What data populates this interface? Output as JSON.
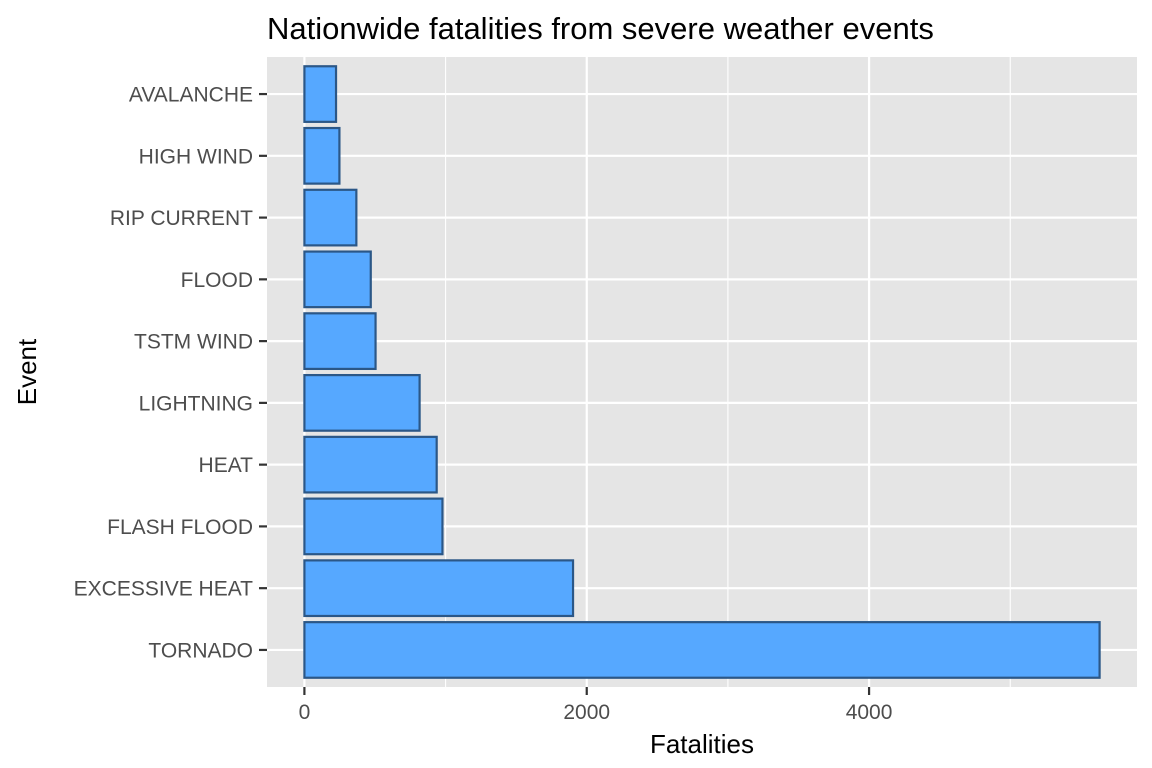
{
  "chart_data": {
    "type": "bar",
    "orientation": "horizontal",
    "title": "Nationwide fatalities from severe weather events",
    "xlabel": "Fatalities",
    "ylabel": "Event",
    "categories": [
      "TORNADO",
      "EXCESSIVE HEAT",
      "FLASH FLOOD",
      "HEAT",
      "LIGHTNING",
      "TSTM WIND",
      "FLOOD",
      "RIP CURRENT",
      "HIGH WIND",
      "AVALANCHE"
    ],
    "values": [
      5633,
      1903,
      978,
      937,
      816,
      504,
      470,
      368,
      248,
      224
    ],
    "xlim": [
      -265,
      5898
    ],
    "xticks": [
      0,
      2000,
      4000
    ],
    "xtick_labels": [
      "0",
      "2000",
      "4000"
    ],
    "grid": true,
    "legend": "none",
    "colors": {
      "bar_fill": "#56A8FF",
      "bar_stroke": "#2B5787",
      "panel_background": "#E5E5E5",
      "grid": "#FFFFFF"
    }
  }
}
